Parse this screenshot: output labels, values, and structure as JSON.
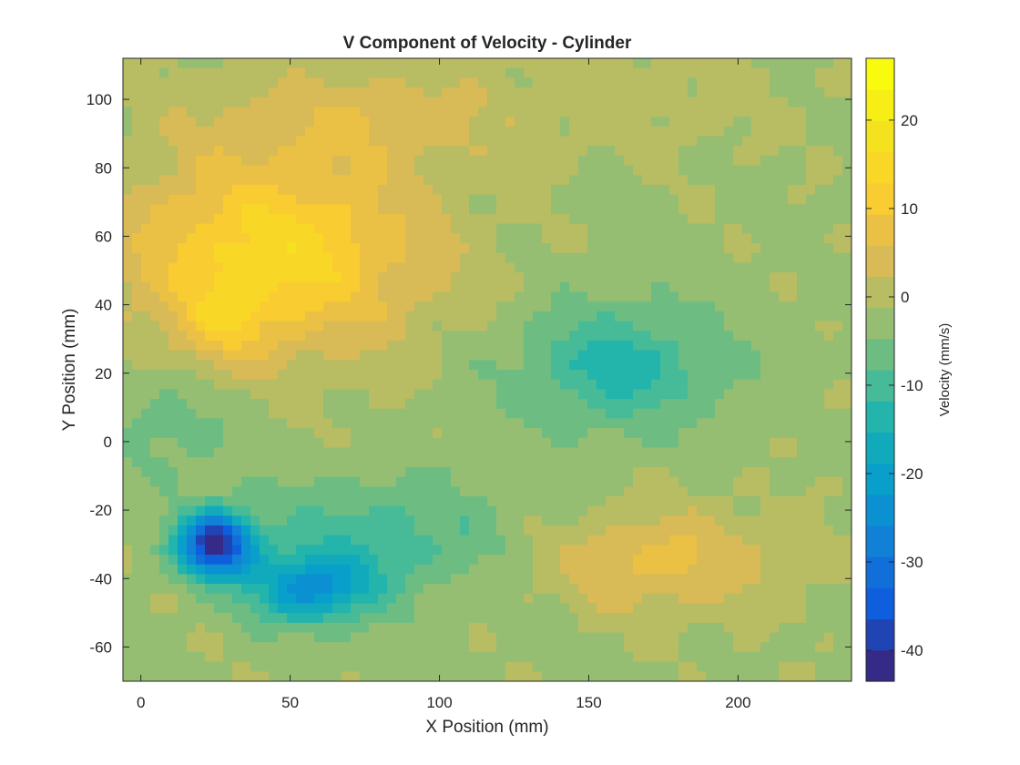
{
  "chart_data": {
    "type": "heatmap",
    "subtype": "filled-contour",
    "title": "V Component of Velocity - Cylinder",
    "xlabel": "X Position (mm)",
    "ylabel": "Y Position (mm)",
    "xlim": [
      -6,
      238
    ],
    "ylim": [
      -70,
      112
    ],
    "xticks": [
      0,
      50,
      100,
      150,
      200
    ],
    "yticks": [
      -60,
      -40,
      -20,
      0,
      20,
      40,
      60,
      80,
      100
    ],
    "colorbar": {
      "label": "Velocity (mm/s)",
      "range": [
        -43.5,
        27
      ],
      "ticks": [
        -40,
        -30,
        -20,
        -10,
        0,
        10,
        20
      ],
      "colormap": "parula"
    },
    "grid": false,
    "features": [
      {
        "name": "upper-left positive region",
        "x": 45,
        "y": 55,
        "sx": 50,
        "sy": 28,
        "value": 17
      },
      {
        "name": "upper-left core",
        "x": 28,
        "y": 35,
        "sx": 14,
        "sy": 12,
        "value": 7
      },
      {
        "name": "top band positive",
        "x": 70,
        "y": 95,
        "sx": 55,
        "sy": 15,
        "value": 6
      },
      {
        "name": "top right mild",
        "x": 170,
        "y": 100,
        "sx": 60,
        "sy": 18,
        "value": 2
      },
      {
        "name": "lower-left negative core",
        "x": 25,
        "y": -30,
        "sx": 12,
        "sy": 9,
        "value": -40
      },
      {
        "name": "lower negative lobe",
        "x": 57,
        "y": -43,
        "sx": 20,
        "sy": 10,
        "value": -20
      },
      {
        "name": "lower negative band",
        "x": 80,
        "y": -28,
        "sx": 45,
        "sy": 18,
        "value": -8
      },
      {
        "name": "right-middle negative",
        "x": 160,
        "y": 22,
        "sx": 35,
        "sy": 18,
        "value": -11
      },
      {
        "name": "lower-right positive",
        "x": 175,
        "y": -35,
        "sx": 40,
        "sy": 15,
        "value": 9
      },
      {
        "name": "left-middle negative",
        "x": 10,
        "y": 5,
        "sx": 20,
        "sy": 15,
        "value": -5
      }
    ],
    "background_value": -2
  }
}
